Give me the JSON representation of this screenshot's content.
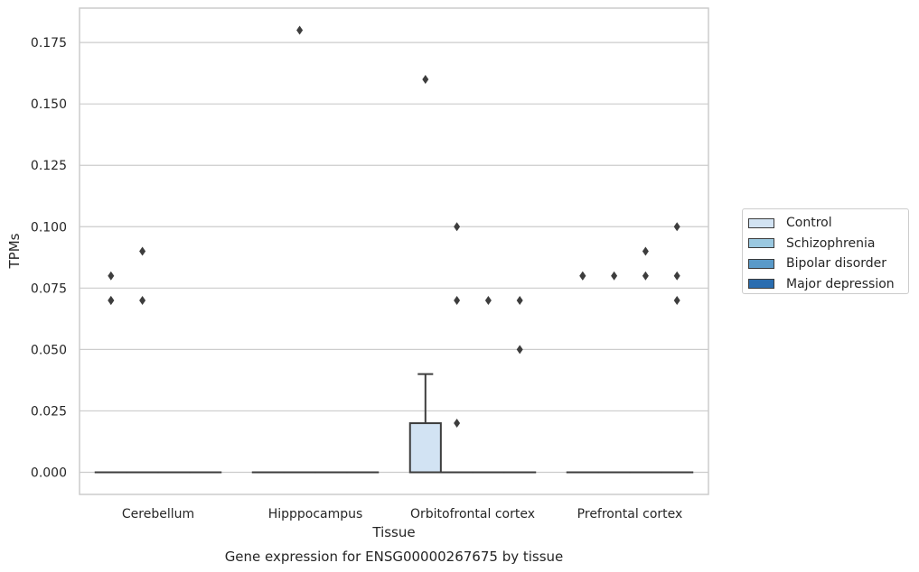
{
  "chart_data": {
    "type": "box",
    "title": "Gene expression for ENSG00000267675 by tissue",
    "xlabel": "Tissue",
    "ylabel": "TPMs",
    "ylim": [
      -0.009,
      0.189
    ],
    "yticks": [
      0.0,
      0.025,
      0.05,
      0.075,
      0.1,
      0.125,
      0.15,
      0.175
    ],
    "ytick_labels": [
      "0.000",
      "0.025",
      "0.050",
      "0.075",
      "0.100",
      "0.125",
      "0.150",
      "0.175"
    ],
    "grid": "horizontal",
    "legend_position": "right",
    "categories": [
      "Cerebellum",
      "Hipppocampus",
      "Orbitofrontal cortex",
      "Prefrontal cortex"
    ],
    "series": [
      {
        "name": "Control",
        "color": "#d2e3f3",
        "boxes": [
          {
            "category": "Cerebellum",
            "q1": 0,
            "median": 0,
            "q3": 0,
            "whisker_low": 0,
            "whisker_high": 0,
            "outliers": [
              0.08,
              0.07,
              0.07
            ]
          },
          {
            "category": "Hipppocampus",
            "q1": 0,
            "median": 0,
            "q3": 0,
            "whisker_low": 0,
            "whisker_high": 0,
            "outliers": []
          },
          {
            "category": "Orbitofrontal cortex",
            "q1": 0,
            "median": 0,
            "q3": 0.02,
            "whisker_low": 0,
            "whisker_high": 0.04,
            "outliers": [
              0.16
            ]
          },
          {
            "category": "Prefrontal cortex",
            "q1": 0,
            "median": 0,
            "q3": 0,
            "whisker_low": 0,
            "whisker_high": 0,
            "outliers": [
              0.08,
              0.08
            ]
          }
        ]
      },
      {
        "name": "Schizophrenia",
        "color": "#9ac8e0",
        "boxes": [
          {
            "category": "Cerebellum",
            "q1": 0,
            "median": 0,
            "q3": 0,
            "whisker_low": 0,
            "whisker_high": 0,
            "outliers": [
              0.09,
              0.07
            ]
          },
          {
            "category": "Hipppocampus",
            "q1": 0,
            "median": 0,
            "q3": 0,
            "whisker_low": 0,
            "whisker_high": 0,
            "outliers": [
              0.18
            ]
          },
          {
            "category": "Orbitofrontal cortex",
            "q1": 0,
            "median": 0,
            "q3": 0,
            "whisker_low": 0,
            "whisker_high": 0,
            "outliers": [
              0.1,
              0.07,
              0.02
            ]
          },
          {
            "category": "Prefrontal cortex",
            "q1": 0,
            "median": 0,
            "q3": 0,
            "whisker_low": 0,
            "whisker_high": 0,
            "outliers": [
              0.08
            ]
          }
        ]
      },
      {
        "name": "Bipolar disorder",
        "color": "#5a9ac9",
        "boxes": [
          {
            "category": "Cerebellum",
            "q1": 0,
            "median": 0,
            "q3": 0,
            "whisker_low": 0,
            "whisker_high": 0,
            "outliers": []
          },
          {
            "category": "Hipppocampus",
            "q1": 0,
            "median": 0,
            "q3": 0,
            "whisker_low": 0,
            "whisker_high": 0,
            "outliers": []
          },
          {
            "category": "Orbitofrontal cortex",
            "q1": 0,
            "median": 0,
            "q3": 0,
            "whisker_low": 0,
            "whisker_high": 0,
            "outliers": [
              0.07
            ]
          },
          {
            "category": "Prefrontal cortex",
            "q1": 0,
            "median": 0,
            "q3": 0,
            "whisker_low": 0,
            "whisker_high": 0,
            "outliers": [
              0.09,
              0.08
            ]
          }
        ]
      },
      {
        "name": "Major depression",
        "color": "#2a6db0",
        "boxes": [
          {
            "category": "Cerebellum",
            "q1": 0,
            "median": 0,
            "q3": 0,
            "whisker_low": 0,
            "whisker_high": 0,
            "outliers": []
          },
          {
            "category": "Hipppocampus",
            "q1": 0,
            "median": 0,
            "q3": 0,
            "whisker_low": 0,
            "whisker_high": 0,
            "outliers": []
          },
          {
            "category": "Orbitofrontal cortex",
            "q1": 0,
            "median": 0,
            "q3": 0,
            "whisker_low": 0,
            "whisker_high": 0,
            "outliers": [
              0.07,
              0.05
            ]
          },
          {
            "category": "Prefrontal cortex",
            "q1": 0,
            "median": 0,
            "q3": 0,
            "whisker_low": 0,
            "whisker_high": 0,
            "outliers": [
              0.1,
              0.08,
              0.07
            ]
          }
        ]
      }
    ]
  }
}
